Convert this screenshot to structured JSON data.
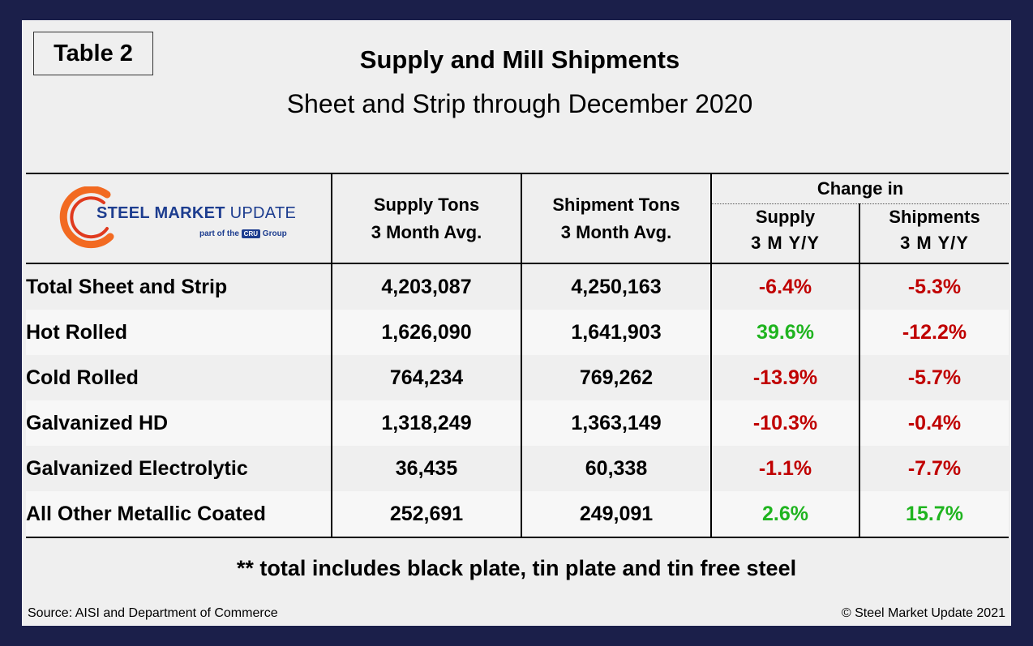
{
  "table_tag": "Table 2",
  "title": "Supply and Mill Shipments",
  "subtitle": "Sheet and Strip through December 2020",
  "logo": {
    "word1": "STEEL MARKET",
    "word2": "UPDATE",
    "sub_prefix": "part of the",
    "sub_badge": "CRU",
    "sub_suffix": "Group",
    "colors": {
      "arc_orange": "#f26a21",
      "arc_red": "#e03a1e",
      "text_blue": "#1d3d8f"
    }
  },
  "headers": {
    "supply_line1": "Supply Tons",
    "supply_line2": "3 Month Avg.",
    "ship_line1": "Shipment Tons",
    "ship_line2": "3 Month Avg.",
    "change_in": "Change in",
    "change_supply": "Supply",
    "change_supply_sub": "3 M   Y/Y",
    "change_ship": "Shipments",
    "change_ship_sub": "3 M   Y/Y"
  },
  "chart_data": {
    "type": "table",
    "title": "Supply and Mill Shipments",
    "subtitle": "Sheet and Strip through December 2020",
    "columns": [
      "",
      "Supply Tons 3 Month Avg.",
      "Shipment Tons 3 Month Avg.",
      "Change in Supply 3 M Y/Y",
      "Change in Shipments 3 M Y/Y"
    ],
    "rows": [
      {
        "label": "Total Sheet and Strip",
        "supply": "4,203,087",
        "shipments": "4,250,163",
        "supply_change": "-6.4%",
        "ship_change": "-5.3%"
      },
      {
        "label": "Hot Rolled",
        "supply": "1,626,090",
        "shipments": "1,641,903",
        "supply_change": "39.6%",
        "ship_change": "-12.2%"
      },
      {
        "label": "Cold Rolled",
        "supply": "764,234",
        "shipments": "769,262",
        "supply_change": "-13.9%",
        "ship_change": "-5.7%"
      },
      {
        "label": "Galvanized HD",
        "supply": "1,318,249",
        "shipments": "1,363,149",
        "supply_change": "-10.3%",
        "ship_change": "-0.4%"
      },
      {
        "label": "Galvanized Electrolytic",
        "supply": "36,435",
        "shipments": "60,338",
        "supply_change": "-1.1%",
        "ship_change": "-7.7%"
      },
      {
        "label": "All Other Metallic Coated",
        "supply": "252,691",
        "shipments": "249,091",
        "supply_change": "2.6%",
        "ship_change": "15.7%"
      }
    ],
    "colors": {
      "negative": "#c00000",
      "positive": "#1fb41f"
    }
  },
  "footnote": "** total includes black plate, tin plate and tin free steel",
  "source": "Source: AISI and Department of Commerce",
  "copyright": "© Steel Market Update 2021"
}
